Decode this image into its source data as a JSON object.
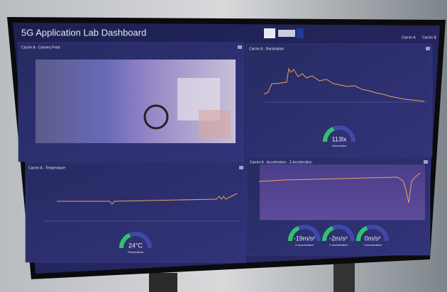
{
  "header": {
    "title": "5G Application Lab Dashboard",
    "tabs": [
      "Carrier A",
      "Carrier B"
    ]
  },
  "panels": [
    {
      "title": "Carrier A - Camera Feed",
      "gauges": []
    },
    {
      "title": "Carrier A - Illumination",
      "gauges": [
        {
          "value": "113lx",
          "label": "Illumination"
        }
      ]
    },
    {
      "title": "Carrier A - Temperature",
      "gauges": [
        {
          "value": "24°C",
          "label": "Temperature"
        }
      ]
    },
    {
      "title": "Carrier A - Acceleration - Z-Acceleration",
      "gauges": [
        {
          "value": "-19m/s²",
          "label": "Z-Acceleration"
        },
        {
          "value": "-2m/s²",
          "label": "X-Acceleration"
        },
        {
          "value": "0m/s²",
          "label": "Y-Acceleration"
        }
      ]
    }
  ]
}
